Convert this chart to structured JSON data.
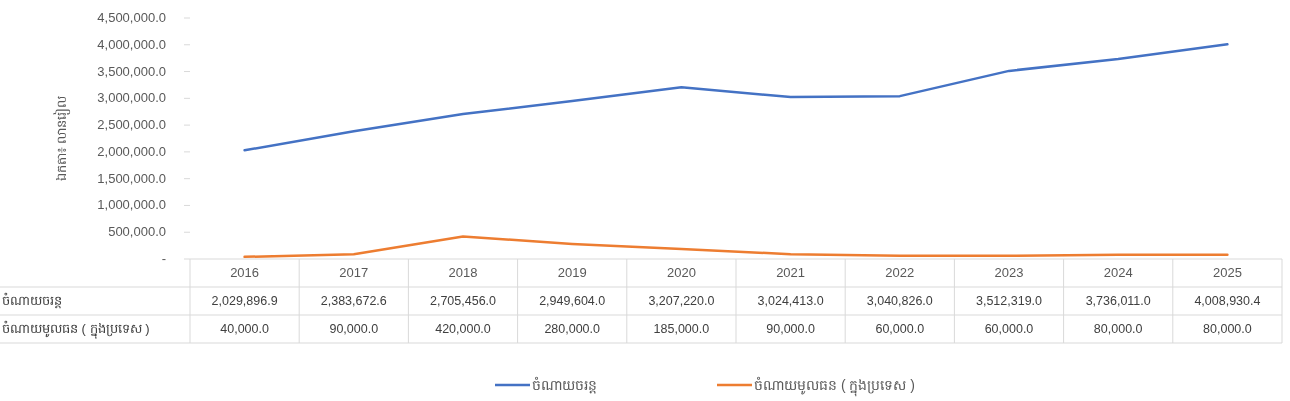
{
  "chart_data": {
    "type": "line",
    "ylabel": "ឯកតា៖ លានរៀល",
    "categories": [
      "2016",
      "2017",
      "2018",
      "2019",
      "2020",
      "2021",
      "2022",
      "2023",
      "2024",
      "2025"
    ],
    "series": [
      {
        "name": "ចំណាយចរន្ត",
        "color": "#4472c4",
        "values": [
          2029896.9,
          2383672.6,
          2705456.0,
          2949604.0,
          3207220.0,
          3024413.0,
          3040826.0,
          3512319.0,
          3736011.0,
          4008930.4
        ],
        "value_labels": [
          "2,029,896.9",
          "2,383,672.6",
          "2,705,456.0",
          "2,949,604.0",
          "3,207,220.0",
          "3,024,413.0",
          "3,040,826.0",
          "3,512,319.0",
          "3,736,011.0",
          "4,008,930.4"
        ]
      },
      {
        "name": "ចំណាយមូលធន ( ក្នុងប្រទេស )",
        "color": "#ed7d31",
        "values": [
          40000.0,
          90000.0,
          420000.0,
          280000.0,
          185000.0,
          90000.0,
          60000.0,
          60000.0,
          80000.0,
          80000.0
        ],
        "value_labels": [
          "40,000.0",
          "90,000.0",
          "420,000.0",
          "280,000.0",
          "185,000.0",
          "90,000.0",
          "60,000.0",
          "60,000.0",
          "80,000.0",
          "80,000.0"
        ]
      }
    ],
    "ylim": [
      0,
      4500000
    ],
    "yticks": [
      {
        "value": 0,
        "label": "-"
      },
      {
        "value": 500000,
        "label": "500,000.0"
      },
      {
        "value": 1000000,
        "label": "1,000,000.0"
      },
      {
        "value": 1500000,
        "label": "1,500,000.0"
      },
      {
        "value": 2000000,
        "label": "2,000,000.0"
      },
      {
        "value": 2500000,
        "label": "2,500,000.0"
      },
      {
        "value": 3000000,
        "label": "3,000,000.0"
      },
      {
        "value": 3500000,
        "label": "3,500,000.0"
      },
      {
        "value": 4000000,
        "label": "4,000,000.0"
      },
      {
        "value": 4500000,
        "label": "4,500,000.0"
      }
    ],
    "grid": false,
    "legend": "bottom",
    "marker": "none",
    "line_style": "solid"
  }
}
